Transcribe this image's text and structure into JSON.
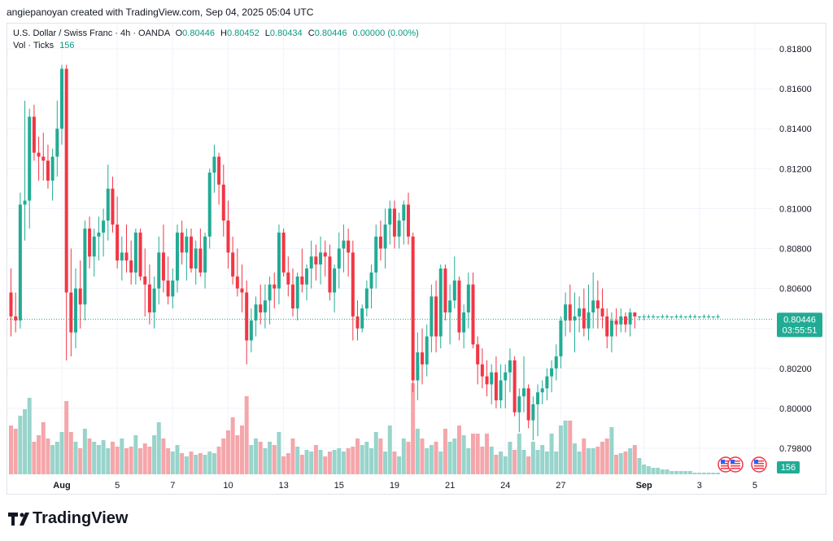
{
  "caption": "angiepanoyan created with TradingView.com, Sep 04, 2025 05:04 UTC",
  "legend": {
    "symbol": "U.S. Dollar / Swiss Franc · 4h · OANDA",
    "o_label": "O",
    "o": "0.80446",
    "h_label": "H",
    "h": "0.80452",
    "l_label": "L",
    "l": "0.80434",
    "c_label": "C",
    "c": "0.80446",
    "change": "0.00000 (0.00%)",
    "vol_label": "Vol · Ticks",
    "vol": "156"
  },
  "price_badge": {
    "price": "0.80446",
    "countdown": "03:55:51"
  },
  "volume_badge": "156",
  "brand": "TradingView",
  "colors": {
    "up": "#22ab94",
    "down": "#f23645",
    "vol_up": "#98d4cb",
    "vol_down": "#f5a6aa",
    "grid": "#f0f3fa"
  },
  "chart_data": {
    "type": "candlestick",
    "timeframe": "4h",
    "ylim": [
      0.797,
      0.8195
    ],
    "yticks": [
      0.798,
      0.8,
      0.802,
      0.804,
      0.806,
      0.808,
      0.81,
      0.812,
      0.814,
      0.816,
      0.818
    ],
    "ytick_labels": [
      "0.79800",
      "0.80000",
      "0.80200",
      "0.80400",
      "0.80600",
      "0.80800",
      "0.81000",
      "0.81200",
      "0.81400",
      "0.81600",
      "0.81800"
    ],
    "xtick_labels": [
      {
        "label": "Aug",
        "bar": 11
      },
      {
        "label": "5",
        "bar": 23
      },
      {
        "label": "7",
        "bar": 35
      },
      {
        "label": "10",
        "bar": 47
      },
      {
        "label": "13",
        "bar": 59
      },
      {
        "label": "15",
        "bar": 71
      },
      {
        "label": "19",
        "bar": 83
      },
      {
        "label": "21",
        "bar": 95
      },
      {
        "label": "24",
        "bar": 107
      },
      {
        "label": "27",
        "bar": 119
      },
      {
        "label": "Sep",
        "bar": 137
      },
      {
        "label": "3",
        "bar": 149
      },
      {
        "label": "5",
        "bar": 161
      }
    ],
    "last_price": 0.80446,
    "candles": [
      [
        0.8058,
        0.807,
        0.8036,
        0.8046,
        30
      ],
      [
        0.8046,
        0.8058,
        0.8038,
        0.8044,
        28
      ],
      [
        0.8044,
        0.8108,
        0.804,
        0.8102,
        36
      ],
      [
        0.8102,
        0.8154,
        0.8084,
        0.8104,
        40
      ],
      [
        0.8104,
        0.815,
        0.809,
        0.8146,
        47
      ],
      [
        0.8146,
        0.8152,
        0.8124,
        0.8128,
        20
      ],
      [
        0.8128,
        0.8136,
        0.8114,
        0.8126,
        24
      ],
      [
        0.8126,
        0.8138,
        0.8114,
        0.8124,
        32
      ],
      [
        0.8124,
        0.8132,
        0.811,
        0.8114,
        22
      ],
      [
        0.8114,
        0.813,
        0.8104,
        0.8126,
        18
      ],
      [
        0.8126,
        0.8154,
        0.8116,
        0.814,
        20
      ],
      [
        0.814,
        0.8172,
        0.8132,
        0.817,
        26
      ],
      [
        0.817,
        0.8172,
        0.8024,
        0.8058,
        45
      ],
      [
        0.8058,
        0.808,
        0.8026,
        0.8038,
        26
      ],
      [
        0.8038,
        0.807,
        0.803,
        0.806,
        20
      ],
      [
        0.806,
        0.8074,
        0.804,
        0.8052,
        16
      ],
      [
        0.8052,
        0.8094,
        0.8044,
        0.809,
        28
      ],
      [
        0.809,
        0.8096,
        0.807,
        0.8076,
        22
      ],
      [
        0.8076,
        0.809,
        0.8066,
        0.8086,
        20
      ],
      [
        0.8086,
        0.8096,
        0.8074,
        0.8088,
        18
      ],
      [
        0.8088,
        0.81,
        0.8076,
        0.8094,
        21
      ],
      [
        0.8094,
        0.8122,
        0.8084,
        0.811,
        16
      ],
      [
        0.811,
        0.8116,
        0.8088,
        0.8092,
        20
      ],
      [
        0.8092,
        0.8106,
        0.807,
        0.8074,
        17
      ],
      [
        0.8074,
        0.8086,
        0.8064,
        0.8078,
        22
      ],
      [
        0.8078,
        0.8092,
        0.8068,
        0.8074,
        16
      ],
      [
        0.8074,
        0.8084,
        0.8062,
        0.8068,
        17
      ],
      [
        0.8068,
        0.809,
        0.8062,
        0.8088,
        24
      ],
      [
        0.8088,
        0.809,
        0.8064,
        0.8066,
        16
      ],
      [
        0.8066,
        0.808,
        0.8046,
        0.8062,
        19
      ],
      [
        0.8062,
        0.8072,
        0.8042,
        0.8048,
        17
      ],
      [
        0.8048,
        0.8066,
        0.804,
        0.806,
        24
      ],
      [
        0.806,
        0.8086,
        0.8052,
        0.8078,
        32
      ],
      [
        0.8078,
        0.8092,
        0.8058,
        0.8064,
        22
      ],
      [
        0.8064,
        0.8076,
        0.8052,
        0.8056,
        16
      ],
      [
        0.8056,
        0.807,
        0.805,
        0.8064,
        14
      ],
      [
        0.8064,
        0.8092,
        0.8058,
        0.8088,
        18
      ],
      [
        0.8088,
        0.8094,
        0.8072,
        0.8078,
        13
      ],
      [
        0.8078,
        0.809,
        0.8064,
        0.8086,
        11
      ],
      [
        0.8086,
        0.809,
        0.8068,
        0.807,
        14
      ],
      [
        0.807,
        0.8084,
        0.8062,
        0.808,
        12
      ],
      [
        0.808,
        0.809,
        0.8066,
        0.8068,
        13
      ],
      [
        0.8068,
        0.8088,
        0.806,
        0.8086,
        12
      ],
      [
        0.8086,
        0.812,
        0.808,
        0.8118,
        14
      ],
      [
        0.8118,
        0.8132,
        0.8108,
        0.8126,
        13
      ],
      [
        0.8126,
        0.8128,
        0.8102,
        0.8112,
        17
      ],
      [
        0.8112,
        0.8122,
        0.8086,
        0.8094,
        22
      ],
      [
        0.8094,
        0.8104,
        0.807,
        0.8078,
        27
      ],
      [
        0.8078,
        0.8086,
        0.8062,
        0.8066,
        35
      ],
      [
        0.8066,
        0.808,
        0.8056,
        0.806,
        24
      ],
      [
        0.806,
        0.8072,
        0.8048,
        0.8058,
        30
      ],
      [
        0.8058,
        0.8064,
        0.8022,
        0.8034,
        48
      ],
      [
        0.8034,
        0.805,
        0.8028,
        0.8044,
        18
      ],
      [
        0.8044,
        0.8056,
        0.8036,
        0.8052,
        22
      ],
      [
        0.8052,
        0.8062,
        0.8042,
        0.8048,
        20
      ],
      [
        0.8048,
        0.8062,
        0.804,
        0.8054,
        16
      ],
      [
        0.8054,
        0.8066,
        0.8042,
        0.8062,
        20
      ],
      [
        0.8062,
        0.8068,
        0.805,
        0.806,
        18
      ],
      [
        0.806,
        0.8092,
        0.8052,
        0.8088,
        26
      ],
      [
        0.8088,
        0.809,
        0.8066,
        0.8068,
        11
      ],
      [
        0.8068,
        0.8076,
        0.8056,
        0.8062,
        13
      ],
      [
        0.8062,
        0.807,
        0.8046,
        0.805,
        22
      ],
      [
        0.805,
        0.8068,
        0.8044,
        0.8066,
        17
      ],
      [
        0.8066,
        0.808,
        0.8058,
        0.8062,
        12
      ],
      [
        0.8062,
        0.8072,
        0.8054,
        0.807,
        15
      ],
      [
        0.807,
        0.8084,
        0.806,
        0.8076,
        14
      ],
      [
        0.8076,
        0.8082,
        0.8064,
        0.8072,
        18
      ],
      [
        0.8072,
        0.8086,
        0.8062,
        0.8078,
        15
      ],
      [
        0.8078,
        0.8084,
        0.8066,
        0.8076,
        11
      ],
      [
        0.8076,
        0.8082,
        0.8054,
        0.8058,
        14
      ],
      [
        0.8058,
        0.8072,
        0.8048,
        0.807,
        15
      ],
      [
        0.807,
        0.8088,
        0.806,
        0.808,
        16
      ],
      [
        0.808,
        0.8092,
        0.8068,
        0.8084,
        14
      ],
      [
        0.8084,
        0.809,
        0.8066,
        0.8078,
        16
      ],
      [
        0.8078,
        0.8084,
        0.8034,
        0.8046,
        17
      ],
      [
        0.8046,
        0.8054,
        0.8034,
        0.804,
        22
      ],
      [
        0.804,
        0.8052,
        0.8038,
        0.805,
        18
      ],
      [
        0.805,
        0.8064,
        0.8046,
        0.806,
        20
      ],
      [
        0.806,
        0.8072,
        0.805,
        0.8068,
        16
      ],
      [
        0.8068,
        0.8092,
        0.806,
        0.8086,
        26
      ],
      [
        0.8086,
        0.8094,
        0.8074,
        0.808,
        22
      ],
      [
        0.808,
        0.81,
        0.807,
        0.8092,
        14
      ],
      [
        0.8092,
        0.8104,
        0.8082,
        0.81,
        30
      ],
      [
        0.81,
        0.8104,
        0.808,
        0.8086,
        14
      ],
      [
        0.8086,
        0.8098,
        0.808,
        0.8094,
        11
      ],
      [
        0.8094,
        0.8104,
        0.8082,
        0.8102,
        22
      ],
      [
        0.8102,
        0.8108,
        0.8082,
        0.8086,
        20
      ],
      [
        0.8086,
        0.8088,
        0.8008,
        0.8014,
        56
      ],
      [
        0.8014,
        0.8038,
        0.8004,
        0.8028,
        28
      ],
      [
        0.8028,
        0.804,
        0.8012,
        0.8022,
        22
      ],
      [
        0.8022,
        0.8042,
        0.8016,
        0.8036,
        16
      ],
      [
        0.8036,
        0.8062,
        0.8028,
        0.8056,
        18
      ],
      [
        0.8056,
        0.8064,
        0.8028,
        0.8036,
        20
      ],
      [
        0.8036,
        0.8072,
        0.803,
        0.807,
        14
      ],
      [
        0.807,
        0.8072,
        0.8044,
        0.8048,
        28
      ],
      [
        0.8048,
        0.8062,
        0.8032,
        0.8054,
        20
      ],
      [
        0.8054,
        0.8076,
        0.805,
        0.8064,
        22
      ],
      [
        0.8064,
        0.8066,
        0.8034,
        0.8038,
        30
      ],
      [
        0.8038,
        0.8052,
        0.803,
        0.8048,
        24
      ],
      [
        0.8048,
        0.8068,
        0.804,
        0.8062,
        16
      ],
      [
        0.8062,
        0.8068,
        0.803,
        0.8032,
        25
      ],
      [
        0.8032,
        0.8036,
        0.8012,
        0.8022,
        25
      ],
      [
        0.8022,
        0.803,
        0.801,
        0.8016,
        17
      ],
      [
        0.8016,
        0.8024,
        0.8006,
        0.8012,
        25
      ],
      [
        0.8012,
        0.8022,
        0.8002,
        0.8018,
        17
      ],
      [
        0.8018,
        0.8026,
        0.8,
        0.8004,
        12
      ],
      [
        0.8004,
        0.8022,
        0.8,
        0.8014,
        14
      ],
      [
        0.8014,
        0.8022,
        0.8,
        0.8018,
        11
      ],
      [
        0.8018,
        0.803,
        0.8008,
        0.8024,
        20
      ],
      [
        0.8024,
        0.8026,
        0.7996,
        0.7998,
        15
      ],
      [
        0.7998,
        0.801,
        0.7988,
        0.8006,
        25
      ],
      [
        0.8006,
        0.8026,
        0.7998,
        0.801,
        15
      ],
      [
        0.801,
        0.8012,
        0.799,
        0.7994,
        11
      ],
      [
        0.7994,
        0.8006,
        0.7984,
        0.8002,
        20
      ],
      [
        0.8002,
        0.8012,
        0.7986,
        0.8008,
        15
      ],
      [
        0.8008,
        0.8014,
        0.8002,
        0.801,
        18
      ],
      [
        0.801,
        0.802,
        0.8004,
        0.8016,
        14
      ],
      [
        0.8016,
        0.8024,
        0.8008,
        0.802,
        25
      ],
      [
        0.802,
        0.8032,
        0.8014,
        0.8026,
        14
      ],
      [
        0.8026,
        0.8046,
        0.802,
        0.8044,
        30
      ],
      [
        0.8044,
        0.8058,
        0.8036,
        0.8052,
        33
      ],
      [
        0.8052,
        0.8062,
        0.8038,
        0.8044,
        33
      ],
      [
        0.8044,
        0.8058,
        0.8028,
        0.8046,
        19
      ],
      [
        0.8046,
        0.8056,
        0.8038,
        0.805,
        14
      ],
      [
        0.805,
        0.806,
        0.8036,
        0.804,
        22
      ],
      [
        0.804,
        0.8062,
        0.8034,
        0.8048,
        16
      ],
      [
        0.8048,
        0.8068,
        0.804,
        0.8054,
        16
      ],
      [
        0.8054,
        0.8064,
        0.804,
        0.805,
        17
      ],
      [
        0.805,
        0.806,
        0.804,
        0.8046,
        20
      ],
      [
        0.8046,
        0.805,
        0.803,
        0.8036,
        22
      ],
      [
        0.8036,
        0.8048,
        0.8028,
        0.8044,
        29
      ],
      [
        0.8044,
        0.805,
        0.8036,
        0.8042,
        12
      ],
      [
        0.8042,
        0.805,
        0.8038,
        0.8046,
        13
      ],
      [
        0.8046,
        0.8048,
        0.8038,
        0.8042,
        14
      ],
      [
        0.8042,
        0.805,
        0.8036,
        0.8048,
        16
      ],
      [
        0.8048,
        0.8048,
        0.804,
        0.8046,
        18
      ],
      [
        0.8046,
        0.8046,
        0.8044,
        0.8046,
        10
      ],
      [
        0.8046,
        0.8047,
        0.8044,
        0.8046,
        6
      ],
      [
        0.8046,
        0.8047,
        0.8045,
        0.8046,
        5
      ],
      [
        0.8046,
        0.8047,
        0.8045,
        0.8046,
        4
      ],
      [
        0.8046,
        0.8046,
        0.8045,
        0.8046,
        4
      ],
      [
        0.8046,
        0.8047,
        0.8045,
        0.8046,
        3
      ],
      [
        0.8046,
        0.8047,
        0.8045,
        0.8046,
        3
      ],
      [
        0.8046,
        0.8046,
        0.8045,
        0.8046,
        2
      ],
      [
        0.8046,
        0.8047,
        0.8045,
        0.8046,
        2
      ],
      [
        0.8046,
        0.8047,
        0.8045,
        0.8046,
        2
      ],
      [
        0.8046,
        0.8046,
        0.8045,
        0.8046,
        2
      ],
      [
        0.8046,
        0.8047,
        0.8045,
        0.8046,
        2
      ],
      [
        0.8046,
        0.8047,
        0.8045,
        0.8046,
        1
      ],
      [
        0.8046,
        0.8046,
        0.8045,
        0.8046,
        1
      ],
      [
        0.8046,
        0.8047,
        0.8045,
        0.8046,
        1
      ],
      [
        0.8046,
        0.8047,
        0.8045,
        0.8046,
        1
      ],
      [
        0.8046,
        0.8046,
        0.8045,
        0.8046,
        1
      ],
      [
        0.8046,
        0.8047,
        0.8045,
        0.8046,
        1
      ]
    ]
  }
}
